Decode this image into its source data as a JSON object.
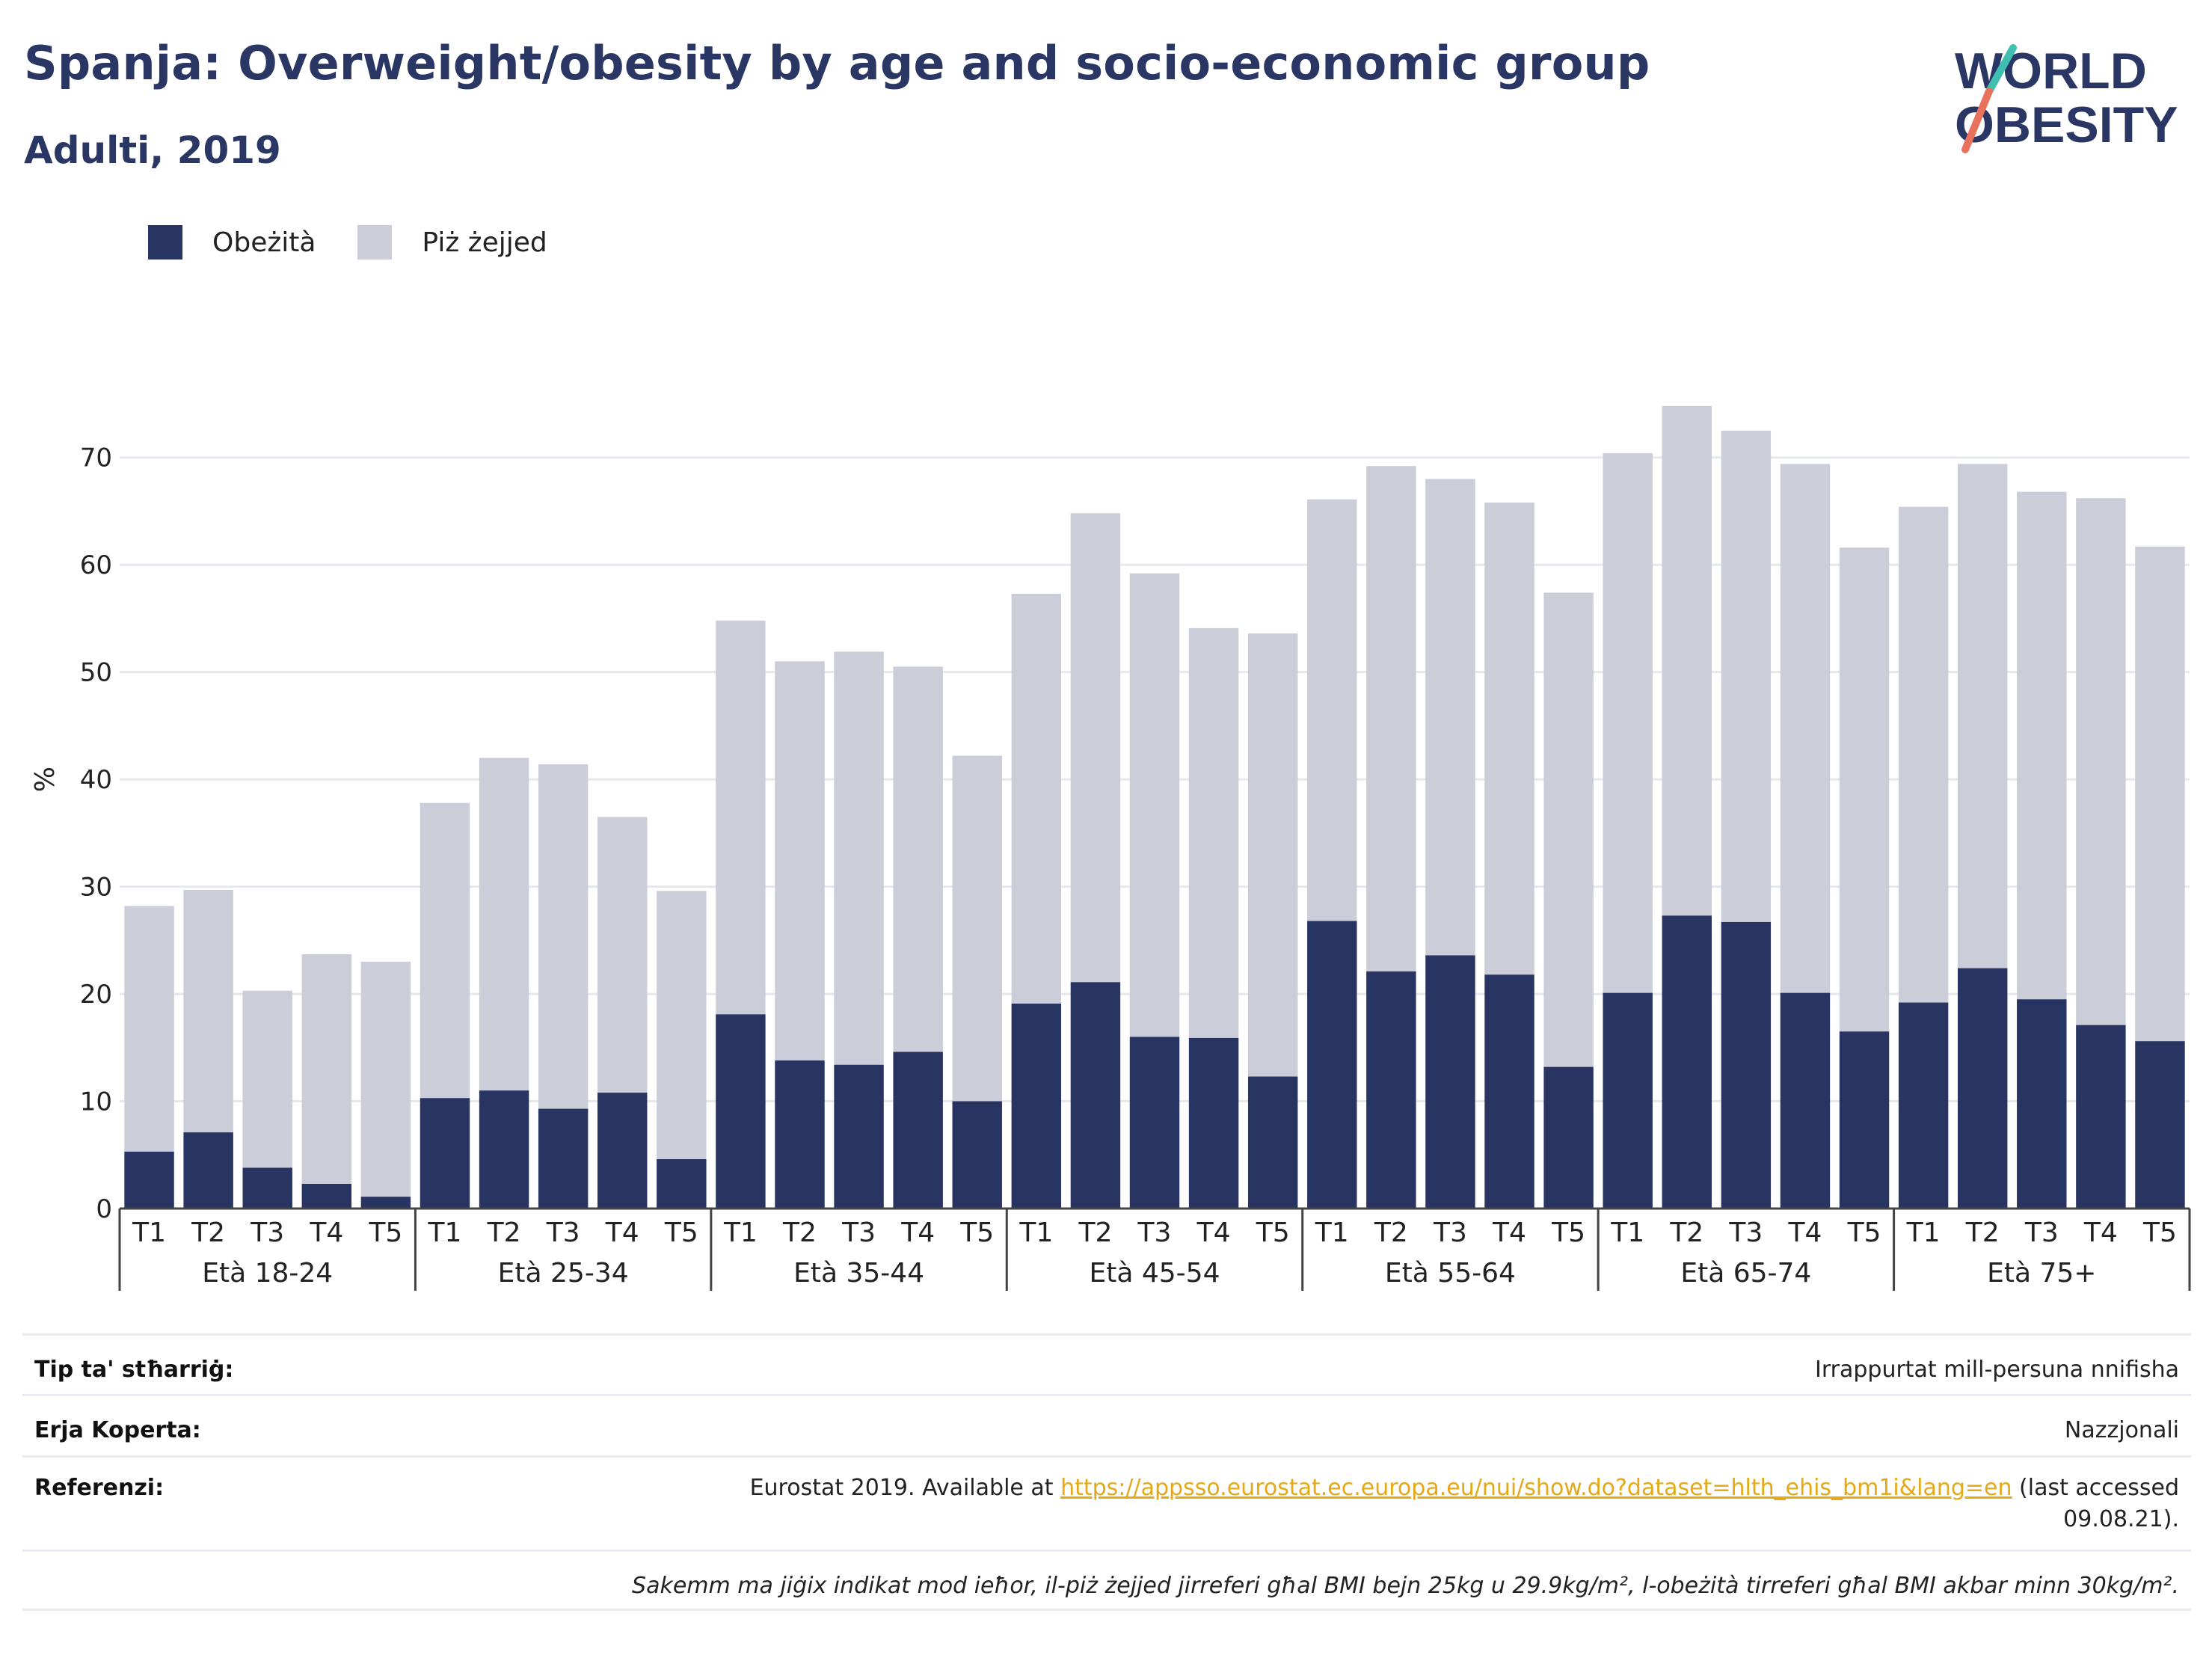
{
  "header": {
    "title": "Spanja: Overweight/obesity by age and socio-economic group",
    "subtitle": "Adulti, 2019"
  },
  "logo": {
    "line1": "WORLD",
    "line2": "OBESITY"
  },
  "colors": {
    "obesity": "#283563",
    "overweight": "#cbcdd8",
    "title": "#2a3663",
    "accent_teal": "#3fbfb1",
    "accent_red": "#e8725c",
    "link": "#e5a817"
  },
  "chart_data": {
    "type": "bar",
    "stacked": true,
    "title": "",
    "ylabel": "%",
    "xlabel": "",
    "ylim": [
      0,
      75
    ],
    "yticks": [
      0,
      10,
      20,
      30,
      40,
      50,
      60,
      70
    ],
    "grid": true,
    "legend_position": "top-left",
    "groups": [
      "Età 18-24",
      "Età 25-34",
      "Età 35-44",
      "Età 45-54",
      "Età 55-64",
      "Età 65-74",
      "Età 75+"
    ],
    "subcategories": [
      "T1",
      "T2",
      "T3",
      "T4",
      "T5"
    ],
    "series": [
      {
        "name": "Obeżità",
        "color": "#283563",
        "values": [
          5.3,
          7.1,
          3.8,
          2.3,
          1.1,
          10.3,
          11.0,
          9.3,
          10.8,
          4.6,
          18.1,
          13.8,
          13.4,
          14.6,
          10.0,
          19.1,
          21.1,
          16.0,
          15.9,
          12.3,
          26.8,
          22.1,
          23.6,
          21.8,
          13.2,
          20.1,
          27.3,
          26.7,
          20.1,
          16.5,
          19.2,
          22.4,
          19.5,
          17.1,
          15.6
        ]
      },
      {
        "name": "Piż żejjed",
        "color": "#cbcdd8",
        "values": [
          22.9,
          22.6,
          16.5,
          21.4,
          21.9,
          27.5,
          31.0,
          32.1,
          25.7,
          25.0,
          36.7,
          37.2,
          38.5,
          35.9,
          32.2,
          38.2,
          43.7,
          43.2,
          38.2,
          41.3,
          39.3,
          47.1,
          44.4,
          44.0,
          44.2,
          50.3,
          47.5,
          45.8,
          49.3,
          45.1,
          46.2,
          47.0,
          47.3,
          49.1,
          46.1
        ]
      }
    ]
  },
  "footer": {
    "rows": [
      {
        "label": "Tip ta' stħarriġ:",
        "value": "Irrappurtat mill-persuna nnifisha"
      },
      {
        "label": "Erja Koperta:",
        "value": "Nazzjonali"
      }
    ],
    "reference": {
      "label": "Referenzi:",
      "before": "Eurostat 2019. Available at ",
      "link": "https://appsso.eurostat.ec.europa.eu/nui/show.do?dataset=hlth_ehis_bm1i&lang=en",
      "after": " (last accessed 09.08.21)."
    },
    "note": "Sakemm ma jiġix indikat mod ieħor, il-piż żejjed jirreferi għal BMI bejn 25kg u 29.9kg/m², l-obeżità tirreferi għal BMI akbar minn 30kg/m²."
  }
}
